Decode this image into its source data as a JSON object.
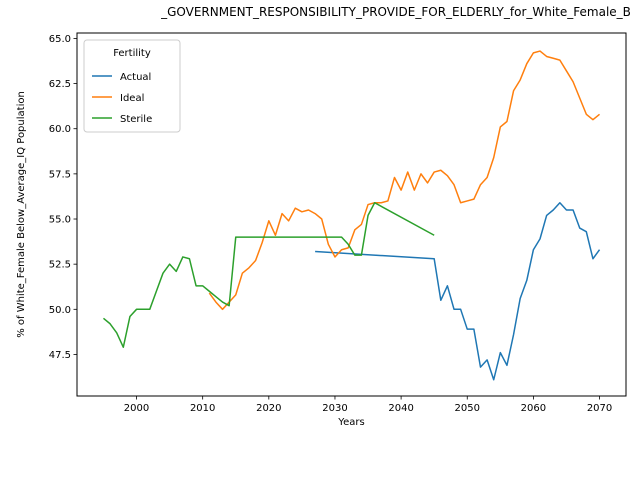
{
  "chart_data": {
    "type": "line",
    "title": "_GOVERNMENT_RESPONSIBILITY_PROVIDE_FOR_ELDERLY_for_White_Female_B",
    "xlabel": "Years",
    "ylabel": "% of White_Female Below_Average_IQ Population",
    "xlim": [
      1991,
      2074
    ],
    "ylim": [
      45.2,
      65.3
    ],
    "xticks": [
      2000,
      2010,
      2020,
      2030,
      2040,
      2050,
      2060,
      2070
    ],
    "yticks": [
      47.5,
      50.0,
      52.5,
      55.0,
      57.5,
      60.0,
      62.5,
      65.0
    ],
    "ytick_labels": [
      "47.5",
      "50.0",
      "52.5",
      "55.0",
      "57.5",
      "60.0",
      "62.5",
      "65.0"
    ],
    "grid": false,
    "legend": {
      "title": "Fertility",
      "position": "top-left"
    },
    "series": [
      {
        "name": "Actual",
        "color": "#1f77b4",
        "points": [
          [
            2027,
            53.2
          ],
          [
            2045,
            52.8
          ],
          [
            2046,
            50.5
          ],
          [
            2047,
            51.3
          ],
          [
            2048,
            50.0
          ],
          [
            2049,
            50.0
          ],
          [
            2050,
            48.9
          ],
          [
            2051,
            48.9
          ],
          [
            2052,
            46.8
          ],
          [
            2053,
            47.2
          ],
          [
            2054,
            46.1
          ],
          [
            2055,
            47.6
          ],
          [
            2056,
            46.9
          ],
          [
            2057,
            48.6
          ],
          [
            2058,
            50.6
          ],
          [
            2059,
            51.6
          ],
          [
            2060,
            53.3
          ],
          [
            2061,
            53.9
          ],
          [
            2062,
            55.2
          ],
          [
            2063,
            55.5
          ],
          [
            2064,
            55.9
          ],
          [
            2065,
            55.5
          ],
          [
            2066,
            55.5
          ],
          [
            2067,
            54.5
          ],
          [
            2068,
            54.3
          ],
          [
            2069,
            52.8
          ],
          [
            2070,
            53.3
          ]
        ]
      },
      {
        "name": "Ideal",
        "color": "#ff7f0e",
        "points": [
          [
            2011,
            50.9
          ],
          [
            2012,
            50.4
          ],
          [
            2013,
            50.0
          ],
          [
            2014,
            50.4
          ],
          [
            2015,
            50.8
          ],
          [
            2016,
            52.0
          ],
          [
            2017,
            52.3
          ],
          [
            2018,
            52.7
          ],
          [
            2019,
            53.7
          ],
          [
            2020,
            54.9
          ],
          [
            2021,
            54.1
          ],
          [
            2022,
            55.3
          ],
          [
            2023,
            54.9
          ],
          [
            2024,
            55.6
          ],
          [
            2025,
            55.4
          ],
          [
            2026,
            55.5
          ],
          [
            2027,
            55.3
          ],
          [
            2028,
            55.0
          ],
          [
            2029,
            53.6
          ],
          [
            2030,
            52.9
          ],
          [
            2031,
            53.3
          ],
          [
            2032,
            53.4
          ],
          [
            2033,
            54.4
          ],
          [
            2034,
            54.7
          ],
          [
            2035,
            55.8
          ],
          [
            2036,
            55.9
          ],
          [
            2037,
            55.9
          ],
          [
            2038,
            56.0
          ],
          [
            2039,
            57.3
          ],
          [
            2040,
            56.6
          ],
          [
            2041,
            57.6
          ],
          [
            2042,
            56.6
          ],
          [
            2043,
            57.5
          ],
          [
            2044,
            57.0
          ],
          [
            2045,
            57.6
          ],
          [
            2046,
            57.7
          ],
          [
            2047,
            57.4
          ],
          [
            2048,
            56.9
          ],
          [
            2049,
            55.9
          ],
          [
            2050,
            56.0
          ],
          [
            2051,
            56.1
          ],
          [
            2052,
            56.9
          ],
          [
            2053,
            57.3
          ],
          [
            2054,
            58.4
          ],
          [
            2055,
            60.1
          ],
          [
            2056,
            60.4
          ],
          [
            2057,
            62.1
          ],
          [
            2058,
            62.7
          ],
          [
            2059,
            63.6
          ],
          [
            2060,
            64.2
          ],
          [
            2061,
            64.3
          ],
          [
            2062,
            64.0
          ],
          [
            2063,
            63.9
          ],
          [
            2064,
            63.8
          ],
          [
            2065,
            63.2
          ],
          [
            2066,
            62.6
          ],
          [
            2067,
            61.7
          ],
          [
            2068,
            60.8
          ],
          [
            2069,
            60.5
          ],
          [
            2070,
            60.8
          ]
        ]
      },
      {
        "name": "Sterile",
        "color": "#2ca02c",
        "points": [
          [
            1995,
            49.5
          ],
          [
            1996,
            49.2
          ],
          [
            1997,
            48.7
          ],
          [
            1998,
            47.9
          ],
          [
            1999,
            49.6
          ],
          [
            2000,
            50.0
          ],
          [
            2001,
            50.0
          ],
          [
            2002,
            50.0
          ],
          [
            2003,
            51.0
          ],
          [
            2004,
            52.0
          ],
          [
            2005,
            52.5
          ],
          [
            2006,
            52.1
          ],
          [
            2007,
            52.9
          ],
          [
            2008,
            52.8
          ],
          [
            2009,
            51.3
          ],
          [
            2010,
            51.3
          ],
          [
            2011,
            51.0
          ],
          [
            2012,
            50.7
          ],
          [
            2013,
            50.4
          ],
          [
            2014,
            50.2
          ],
          [
            2015,
            54.0
          ],
          [
            2031,
            54.0
          ],
          [
            2032,
            53.6
          ],
          [
            2033,
            53.0
          ],
          [
            2034,
            53.0
          ],
          [
            2035,
            55.2
          ],
          [
            2036,
            55.9
          ],
          [
            2045,
            54.1
          ]
        ]
      }
    ]
  }
}
